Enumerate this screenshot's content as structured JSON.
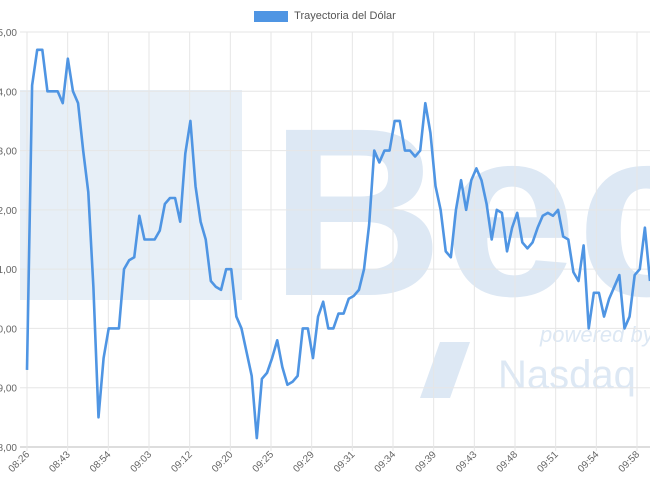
{
  "chart_data": {
    "type": "line",
    "title": "",
    "legend": {
      "position": "top",
      "label": "Trayectoria del Dólar"
    },
    "series_color": "#4f95e3",
    "grid": true,
    "yaxis": {
      "ticks": [
        "8,00",
        "9,00",
        "0,00",
        "1,00",
        "2,00",
        "3,00",
        "4,00",
        "5,00"
      ],
      "ylim": [
        0,
        7
      ]
    },
    "xaxis": {
      "ticks": [
        "08:26",
        "08:43",
        "08:54",
        "09:03",
        "09:12",
        "09:20",
        "09:25",
        "09:29",
        "09:31",
        "09:34",
        "09:39",
        "09:43",
        "09:48",
        "09:51",
        "09:54",
        "09:58"
      ]
    },
    "values": [
      1.3,
      6.1,
      6.7,
      6.7,
      6.0,
      6.0,
      6.0,
      5.8,
      6.55,
      6.0,
      5.8,
      5.0,
      4.3,
      2.7,
      0.5,
      1.5,
      2.0,
      2.0,
      2.0,
      3.0,
      3.15,
      3.2,
      3.9,
      3.5,
      3.5,
      3.5,
      3.65,
      4.1,
      4.2,
      4.2,
      3.8,
      4.95,
      5.5,
      4.4,
      3.8,
      3.5,
      2.8,
      2.7,
      2.65,
      3.0,
      3.0,
      2.2,
      2.0,
      1.6,
      1.2,
      0.15,
      1.15,
      1.25,
      1.5,
      1.8,
      1.35,
      1.05,
      1.1,
      1.2,
      2.0,
      2.0,
      1.5,
      2.2,
      2.45,
      2.0,
      2.0,
      2.25,
      2.25,
      2.5,
      2.55,
      2.65,
      3.0,
      3.75,
      5.0,
      4.8,
      5.0,
      5.0,
      5.5,
      5.5,
      5.0,
      5.0,
      4.9,
      5.0,
      5.8,
      5.3,
      4.4,
      4.0,
      3.3,
      3.2,
      4.0,
      4.5,
      4.0,
      4.5,
      4.7,
      4.5,
      4.1,
      3.5,
      4.0,
      3.95,
      3.3,
      3.7,
      3.95,
      3.45,
      3.35,
      3.45,
      3.7,
      3.9,
      3.95,
      3.9,
      4.0,
      3.55,
      3.5,
      2.95,
      2.8,
      3.4,
      2.0,
      2.6,
      2.6,
      2.2,
      2.5,
      2.7,
      2.9,
      2.0,
      2.2,
      2.9,
      3.0,
      3.7,
      2.8
    ]
  },
  "watermark": {
    "brand": "Bec",
    "powered": "powered by",
    "partner": "Nasdaq"
  }
}
